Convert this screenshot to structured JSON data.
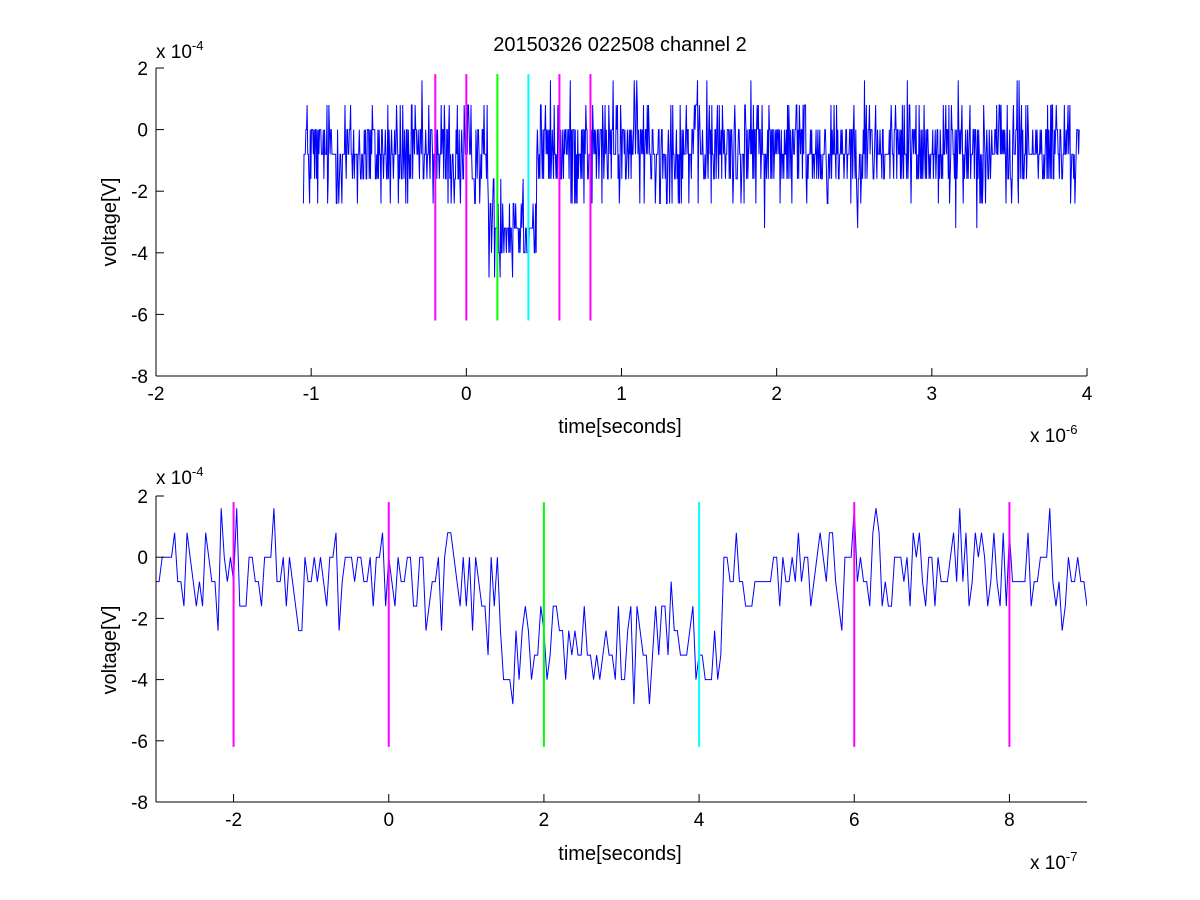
{
  "colors": {
    "signal": "#0000ff",
    "marker_magenta": "#ff00ff",
    "marker_green": "#00ff00",
    "marker_cyan": "#00ffff",
    "axes": "#000000",
    "background": "#ffffff"
  },
  "chart_data": [
    {
      "type": "line",
      "title": "20150326 022508 channel 2",
      "xlabel": "time[seconds]",
      "ylabel": "voltage[V]",
      "xlim": [
        -2e-06,
        4e-06
      ],
      "ylim": [
        -0.0008,
        0.0002
      ],
      "x_exponent_label": {
        "base": "x 10",
        "exp": "-6"
      },
      "y_exponent_label": {
        "base": "x 10",
        "exp": "-4"
      },
      "x_ticks": [
        -2e-06,
        -1e-06,
        0,
        1e-06,
        2e-06,
        3e-06,
        4e-06
      ],
      "x_tick_labels": [
        "-2",
        "-1",
        "0",
        "1",
        "2",
        "3",
        "4"
      ],
      "y_ticks": [
        -0.0008,
        -0.0006,
        -0.0004,
        -0.0002,
        0,
        0.0002
      ],
      "y_tick_labels": [
        "-8",
        "-6",
        "-4",
        "-2",
        "0",
        "2"
      ],
      "grid": false,
      "series": [
        {
          "color": "#0000ff",
          "sampling": {
            "x_start": -1.05e-06,
            "x_end": 3.95e-06,
            "dx": 4e-09
          },
          "y_quantum": 8e-05,
          "segments": [
            {
              "from": -1.05e-06,
              "to": 1.4e-07,
              "level": -8e-05,
              "spread": 0.00016
            },
            {
              "from": 1.4e-07,
              "to": 4.5e-07,
              "level": -0.0003,
              "spread": 0.00016
            },
            {
              "from": 4.5e-07,
              "to": 3.95e-06,
              "level": -6e-05,
              "spread": 0.00016
            }
          ]
        }
      ],
      "markers": [
        {
          "x": -2e-07,
          "y_top": 0.00018,
          "y_bottom": -0.00062,
          "color": "#ff00ff"
        },
        {
          "x": 0,
          "y_top": 0.00018,
          "y_bottom": -0.00062,
          "color": "#ff00ff"
        },
        {
          "x": 2e-07,
          "y_top": 0.00018,
          "y_bottom": -0.00062,
          "color": "#00ff00"
        },
        {
          "x": 4e-07,
          "y_top": 0.00018,
          "y_bottom": -0.00062,
          "color": "#00ffff"
        },
        {
          "x": 6e-07,
          "y_top": 0.00018,
          "y_bottom": -0.00062,
          "color": "#ff00ff"
        },
        {
          "x": 8e-07,
          "y_top": 0.00018,
          "y_bottom": -0.00062,
          "color": "#ff00ff"
        }
      ]
    },
    {
      "type": "line",
      "title": "",
      "xlabel": "time[seconds]",
      "ylabel": "voltage[V]",
      "xlim": [
        -3e-07,
        9e-07
      ],
      "ylim": [
        -0.0008,
        0.0002
      ],
      "x_exponent_label": {
        "base": "x 10",
        "exp": "-7"
      },
      "y_exponent_label": {
        "base": "x 10",
        "exp": "-4"
      },
      "x_ticks": [
        -2e-07,
        0,
        2e-07,
        4e-07,
        6e-07,
        8e-07
      ],
      "x_tick_labels": [
        "-2",
        "0",
        "2",
        "4",
        "6",
        "8"
      ],
      "y_ticks": [
        -0.0008,
        -0.0006,
        -0.0004,
        -0.0002,
        0,
        0.0002
      ],
      "y_tick_labels": [
        "-8",
        "-6",
        "-4",
        "-2",
        "0",
        "2"
      ],
      "grid": false,
      "series": [
        {
          "color": "#0000ff",
          "sampling": {
            "x_start": -3e-07,
            "x_end": 9e-07,
            "dx": 4e-09
          },
          "y_quantum": 8e-05,
          "segments": [
            {
              "from": -3e-07,
              "to": 1.4e-07,
              "level": -6e-05,
              "spread": 0.00016
            },
            {
              "from": 1.4e-07,
              "to": 4.3e-07,
              "level": -0.00028,
              "spread": 0.00016
            },
            {
              "from": 4.3e-07,
              "to": 9e-07,
              "level": -4e-05,
              "spread": 0.00016
            }
          ]
        }
      ],
      "markers": [
        {
          "x": -2e-07,
          "y_top": 0.00018,
          "y_bottom": -0.00062,
          "color": "#ff00ff"
        },
        {
          "x": 0,
          "y_top": 0.00018,
          "y_bottom": -0.00062,
          "color": "#ff00ff"
        },
        {
          "x": 2e-07,
          "y_top": 0.00018,
          "y_bottom": -0.00062,
          "color": "#00ff00"
        },
        {
          "x": 4e-07,
          "y_top": 0.00018,
          "y_bottom": -0.00062,
          "color": "#00ffff"
        },
        {
          "x": 6e-07,
          "y_top": 0.00018,
          "y_bottom": -0.00062,
          "color": "#ff00ff"
        },
        {
          "x": 8e-07,
          "y_top": 0.00018,
          "y_bottom": -0.00062,
          "color": "#ff00ff"
        }
      ]
    }
  ]
}
